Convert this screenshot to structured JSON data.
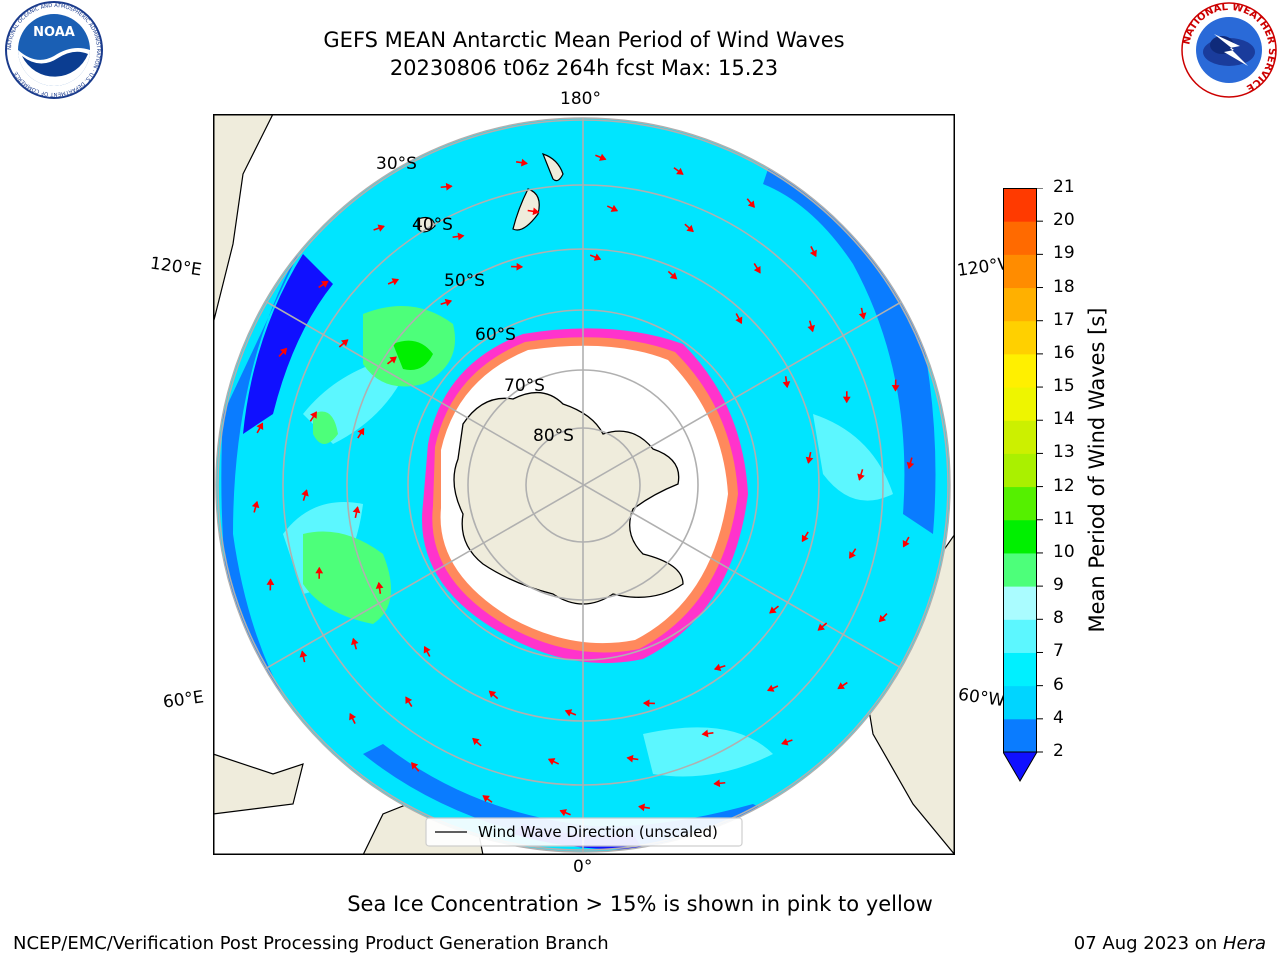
{
  "header": {
    "title_line1": "GEFS MEAN Antarctic Mean Period of Wind Waves",
    "title_line2": "20230806 t06z 264h fcst   Max: 15.23"
  },
  "map": {
    "projection": "south-polar-stereographic",
    "longitude_labels": {
      "top": "180°",
      "bottom": "0°",
      "left_upper": "120°E",
      "left_lower": "60°E",
      "right_upper": "120°W",
      "right_lower": "60°W"
    },
    "latitude_labels": [
      "30°S",
      "40°S",
      "50°S",
      "60°S",
      "70°S",
      "80°S"
    ],
    "colors": {
      "land": "#efecdc",
      "ice_free_ocean": "#00e5ff",
      "sea_ice_edge": "#ff33cc",
      "arrows": "#ff0000",
      "graticule": "#b0b0b0"
    },
    "legend": {
      "label": "Wind Wave Direction (unscaled)",
      "position": "bottom-center"
    }
  },
  "colorbar": {
    "label": "Mean Period of Wind Waves [s]",
    "ticks": [
      "2",
      "4",
      "6",
      "7",
      "8",
      "9",
      "10",
      "11",
      "12",
      "13",
      "14",
      "15",
      "16",
      "17",
      "18",
      "19",
      "20",
      "21"
    ],
    "colors": [
      "#0a7cff",
      "#00d5ff",
      "#00f0ff",
      "#5cf7ff",
      "#aafcff",
      "#4dff7a",
      "#00f000",
      "#55f000",
      "#aaf000",
      "#ccf000",
      "#eef500",
      "#fff000",
      "#ffd000",
      "#ffb000",
      "#ff8c00",
      "#ff6a00",
      "#ff3a00",
      "#ff0000"
    ],
    "under_color": "#1010ff"
  },
  "footer": {
    "note": "Sea Ice Concentration > 15% is shown in pink to yellow",
    "left": "NCEP/EMC/Verification Post Processing Product Generation Branch",
    "right_date": "07 Aug 2023 on ",
    "right_host": "Hera"
  },
  "logos": {
    "left": "NOAA",
    "left_ring": "NATIONAL OCEANIC AND ATMOSPHERIC ADMINISTRATION · U.S. DEPARTMENT OF COMMERCE",
    "right_ring": "NATIONAL WEATHER SERVICE"
  }
}
